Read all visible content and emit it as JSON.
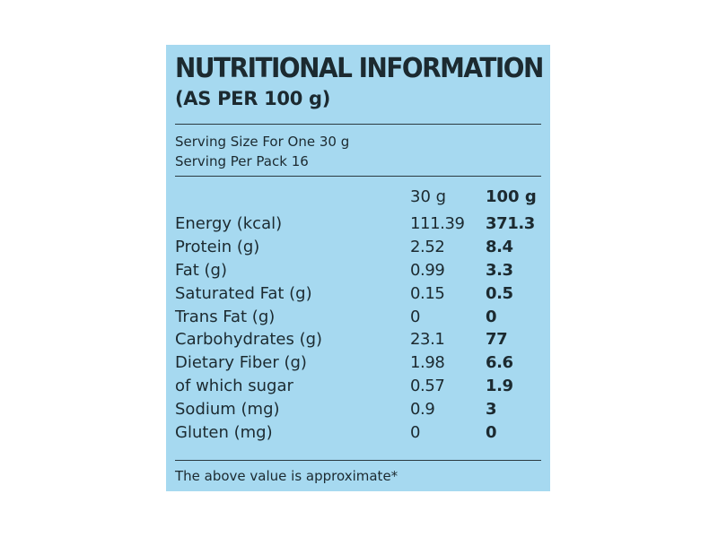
{
  "label": {
    "title": "NUTRITIONAL INFORMATION",
    "subtitle": "(AS PER 100 g)",
    "serving_size": "Serving Size For One 30 g",
    "serving_per_pack": "Serving Per Pack 16",
    "col1_header": "30 g",
    "col2_header": "100 g",
    "rows": [
      {
        "name": "Energy (kcal)",
        "per_serving": "111.39",
        "per_100g": "371.3"
      },
      {
        "name": "Protein (g)",
        "per_serving": "2.52",
        "per_100g": "8.4"
      },
      {
        "name": "Fat (g)",
        "per_serving": "0.99",
        "per_100g": "3.3"
      },
      {
        "name": "Saturated Fat (g)",
        "per_serving": "0.15",
        "per_100g": "0.5"
      },
      {
        "name": "Trans Fat (g)",
        "per_serving": "0",
        "per_100g": "0"
      },
      {
        "name": "Carbohydrates (g)",
        "per_serving": "23.1",
        "per_100g": "77"
      },
      {
        "name": "Dietary Fiber (g)",
        "per_serving": "1.98",
        "per_100g": "6.6"
      },
      {
        "name": "of which sugar",
        "per_serving": "0.57",
        "per_100g": "1.9"
      },
      {
        "name": "Sodium (mg)",
        "per_serving": "0.9",
        "per_100g": "3"
      },
      {
        "name": "Gluten (mg)",
        "per_serving": "0",
        "per_100g": "0"
      }
    ],
    "footnote": "The above value is approximate*",
    "background_color": "#a6d9f0",
    "text_color": "#1c2a30"
  }
}
